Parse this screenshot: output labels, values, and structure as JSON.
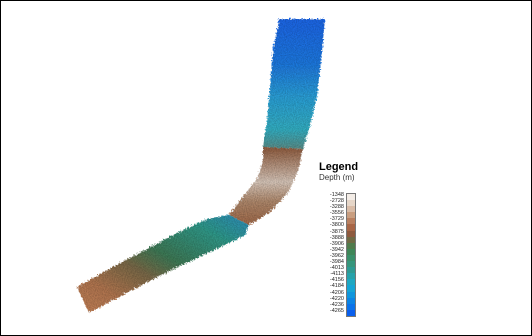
{
  "legend": {
    "title": "Legend",
    "subtitle": "Depth (m)",
    "classes": [
      {
        "label": "-1348",
        "color": "#f3ece6"
      },
      {
        "label": "-2728",
        "color": "#e6d6c8"
      },
      {
        "label": "-3288",
        "color": "#d9bca7"
      },
      {
        "label": "-3556",
        "color": "#c99e80"
      },
      {
        "label": "-3729",
        "color": "#b98060"
      },
      {
        "label": "-3800",
        "color": "#a86646"
      },
      {
        "label": "-3875",
        "color": "#8e5a3e"
      },
      {
        "label": "-3888",
        "color": "#6f6a44"
      },
      {
        "label": "-3906",
        "color": "#4f7b4c"
      },
      {
        "label": "-3942",
        "color": "#3f8658"
      },
      {
        "label": "-3962",
        "color": "#3a8f6a"
      },
      {
        "label": "-3984",
        "color": "#36967c"
      },
      {
        "label": "-4013",
        "color": "#2e9a92"
      },
      {
        "label": "-4113",
        "color": "#26a2aa"
      },
      {
        "label": "-4156",
        "color": "#1ea7c1"
      },
      {
        "label": "-4184",
        "color": "#15a4d4"
      },
      {
        "label": "-4206",
        "color": "#0f95dc"
      },
      {
        "label": "-4220",
        "color": "#0b84e4"
      },
      {
        "label": "-4236",
        "color": "#0a72ea"
      },
      {
        "label": "-4265",
        "color": "#0a5fed"
      }
    ]
  }
}
